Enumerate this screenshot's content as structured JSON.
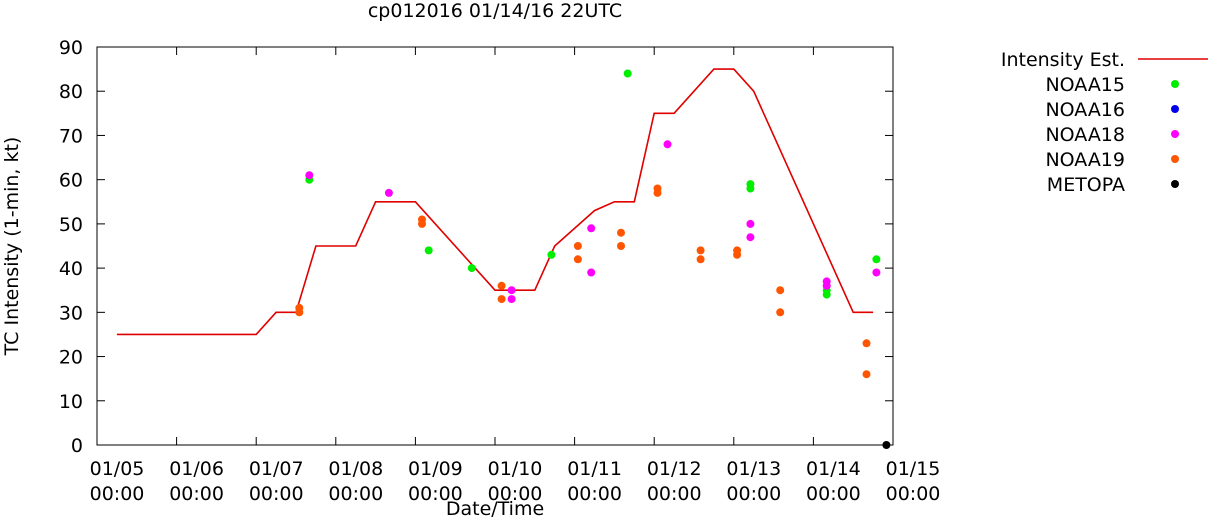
{
  "chart_data": {
    "type": "line",
    "title": "cp012016 01/14/16 22UTC",
    "xlabel": "Date/Time",
    "ylabel": "TC Intensity (1-min, kt)",
    "xlim": [
      "2016-01-05T00:00Z",
      "2016-01-15T00:00Z"
    ],
    "ylim": [
      0,
      90
    ],
    "yticks": [
      0,
      10,
      20,
      30,
      40,
      50,
      60,
      70,
      80,
      90
    ],
    "xticks": [
      {
        "date": "01/05",
        "time": "00:00"
      },
      {
        "date": "01/06",
        "time": "00:00"
      },
      {
        "date": "01/07",
        "time": "00:00"
      },
      {
        "date": "01/08",
        "time": "00:00"
      },
      {
        "date": "01/09",
        "time": "00:00"
      },
      {
        "date": "01/10",
        "time": "00:00"
      },
      {
        "date": "01/11",
        "time": "00:00"
      },
      {
        "date": "01/12",
        "time": "00:00"
      },
      {
        "date": "01/13",
        "time": "00:00"
      },
      {
        "date": "01/14",
        "time": "00:00"
      },
      {
        "date": "01/15",
        "time": "00:00"
      }
    ],
    "grid": false,
    "legend_position": "outside-right",
    "series": [
      {
        "name": "Intensity Est.",
        "kind": "line",
        "color": "#e00000",
        "points": [
          [
            "2016-01-05T06:00Z",
            25
          ],
          [
            "2016-01-07T00:00Z",
            25
          ],
          [
            "2016-01-07T06:00Z",
            30
          ],
          [
            "2016-01-07T12:00Z",
            30
          ],
          [
            "2016-01-07T18:00Z",
            45
          ],
          [
            "2016-01-08T06:00Z",
            45
          ],
          [
            "2016-01-08T12:00Z",
            55
          ],
          [
            "2016-01-09T00:00Z",
            55
          ],
          [
            "2016-01-10T00:00Z",
            35
          ],
          [
            "2016-01-10T12:00Z",
            35
          ],
          [
            "2016-01-10T18:00Z",
            45
          ],
          [
            "2016-01-11T06:00Z",
            53
          ],
          [
            "2016-01-11T12:00Z",
            55
          ],
          [
            "2016-01-11T18:00Z",
            55
          ],
          [
            "2016-01-12T00:00Z",
            75
          ],
          [
            "2016-01-12T06:00Z",
            75
          ],
          [
            "2016-01-12T18:00Z",
            85
          ],
          [
            "2016-01-13T00:00Z",
            85
          ],
          [
            "2016-01-13T06:00Z",
            80
          ],
          [
            "2016-01-14T12:00Z",
            30
          ],
          [
            "2016-01-14T18:00Z",
            30
          ]
        ]
      },
      {
        "name": "NOAA15",
        "kind": "scatter",
        "color": "#00ee00",
        "points": [
          [
            "2016-01-07T16:00Z",
            60
          ],
          [
            "2016-01-09T04:00Z",
            44
          ],
          [
            "2016-01-09T17:00Z",
            40
          ],
          [
            "2016-01-10T17:00Z",
            43
          ],
          [
            "2016-01-11T16:00Z",
            84
          ],
          [
            "2016-01-13T05:00Z",
            58
          ],
          [
            "2016-01-13T05:00Z",
            59
          ],
          [
            "2016-01-14T04:00Z",
            34
          ],
          [
            "2016-01-14T04:00Z",
            35
          ],
          [
            "2016-01-14T19:00Z",
            42
          ]
        ]
      },
      {
        "name": "NOAA16",
        "kind": "scatter",
        "color": "#0000ee",
        "points": []
      },
      {
        "name": "NOAA18",
        "kind": "scatter",
        "color": "#ff00ff",
        "points": [
          [
            "2016-01-07T16:00Z",
            61
          ],
          [
            "2016-01-08T16:00Z",
            57
          ],
          [
            "2016-01-10T05:00Z",
            33
          ],
          [
            "2016-01-10T05:00Z",
            35
          ],
          [
            "2016-01-11T05:00Z",
            49
          ],
          [
            "2016-01-11T05:00Z",
            39
          ],
          [
            "2016-01-12T04:00Z",
            68
          ],
          [
            "2016-01-13T05:00Z",
            50
          ],
          [
            "2016-01-13T05:00Z",
            47
          ],
          [
            "2016-01-14T04:00Z",
            37
          ],
          [
            "2016-01-14T04:00Z",
            36
          ],
          [
            "2016-01-14T19:00Z",
            39
          ]
        ]
      },
      {
        "name": "NOAA19",
        "kind": "scatter",
        "color": "#ff5500",
        "points": [
          [
            "2016-01-07T13:00Z",
            31
          ],
          [
            "2016-01-07T13:00Z",
            30
          ],
          [
            "2016-01-09T02:00Z",
            51
          ],
          [
            "2016-01-09T02:00Z",
            50
          ],
          [
            "2016-01-10T02:00Z",
            36
          ],
          [
            "2016-01-10T02:00Z",
            33
          ],
          [
            "2016-01-11T01:00Z",
            45
          ],
          [
            "2016-01-11T01:00Z",
            42
          ],
          [
            "2016-01-11T14:00Z",
            48
          ],
          [
            "2016-01-11T14:00Z",
            45
          ],
          [
            "2016-01-12T01:00Z",
            58
          ],
          [
            "2016-01-12T01:00Z",
            57
          ],
          [
            "2016-01-12T14:00Z",
            44
          ],
          [
            "2016-01-12T14:00Z",
            42
          ],
          [
            "2016-01-13T01:00Z",
            44
          ],
          [
            "2016-01-13T01:00Z",
            43
          ],
          [
            "2016-01-13T14:00Z",
            35
          ],
          [
            "2016-01-13T14:00Z",
            30
          ],
          [
            "2016-01-14T16:00Z",
            23
          ],
          [
            "2016-01-14T16:00Z",
            16
          ]
        ]
      },
      {
        "name": "METOPA",
        "kind": "scatter",
        "color": "#000000",
        "points": [
          [
            "2016-01-14T22:00Z",
            0
          ]
        ]
      }
    ]
  }
}
